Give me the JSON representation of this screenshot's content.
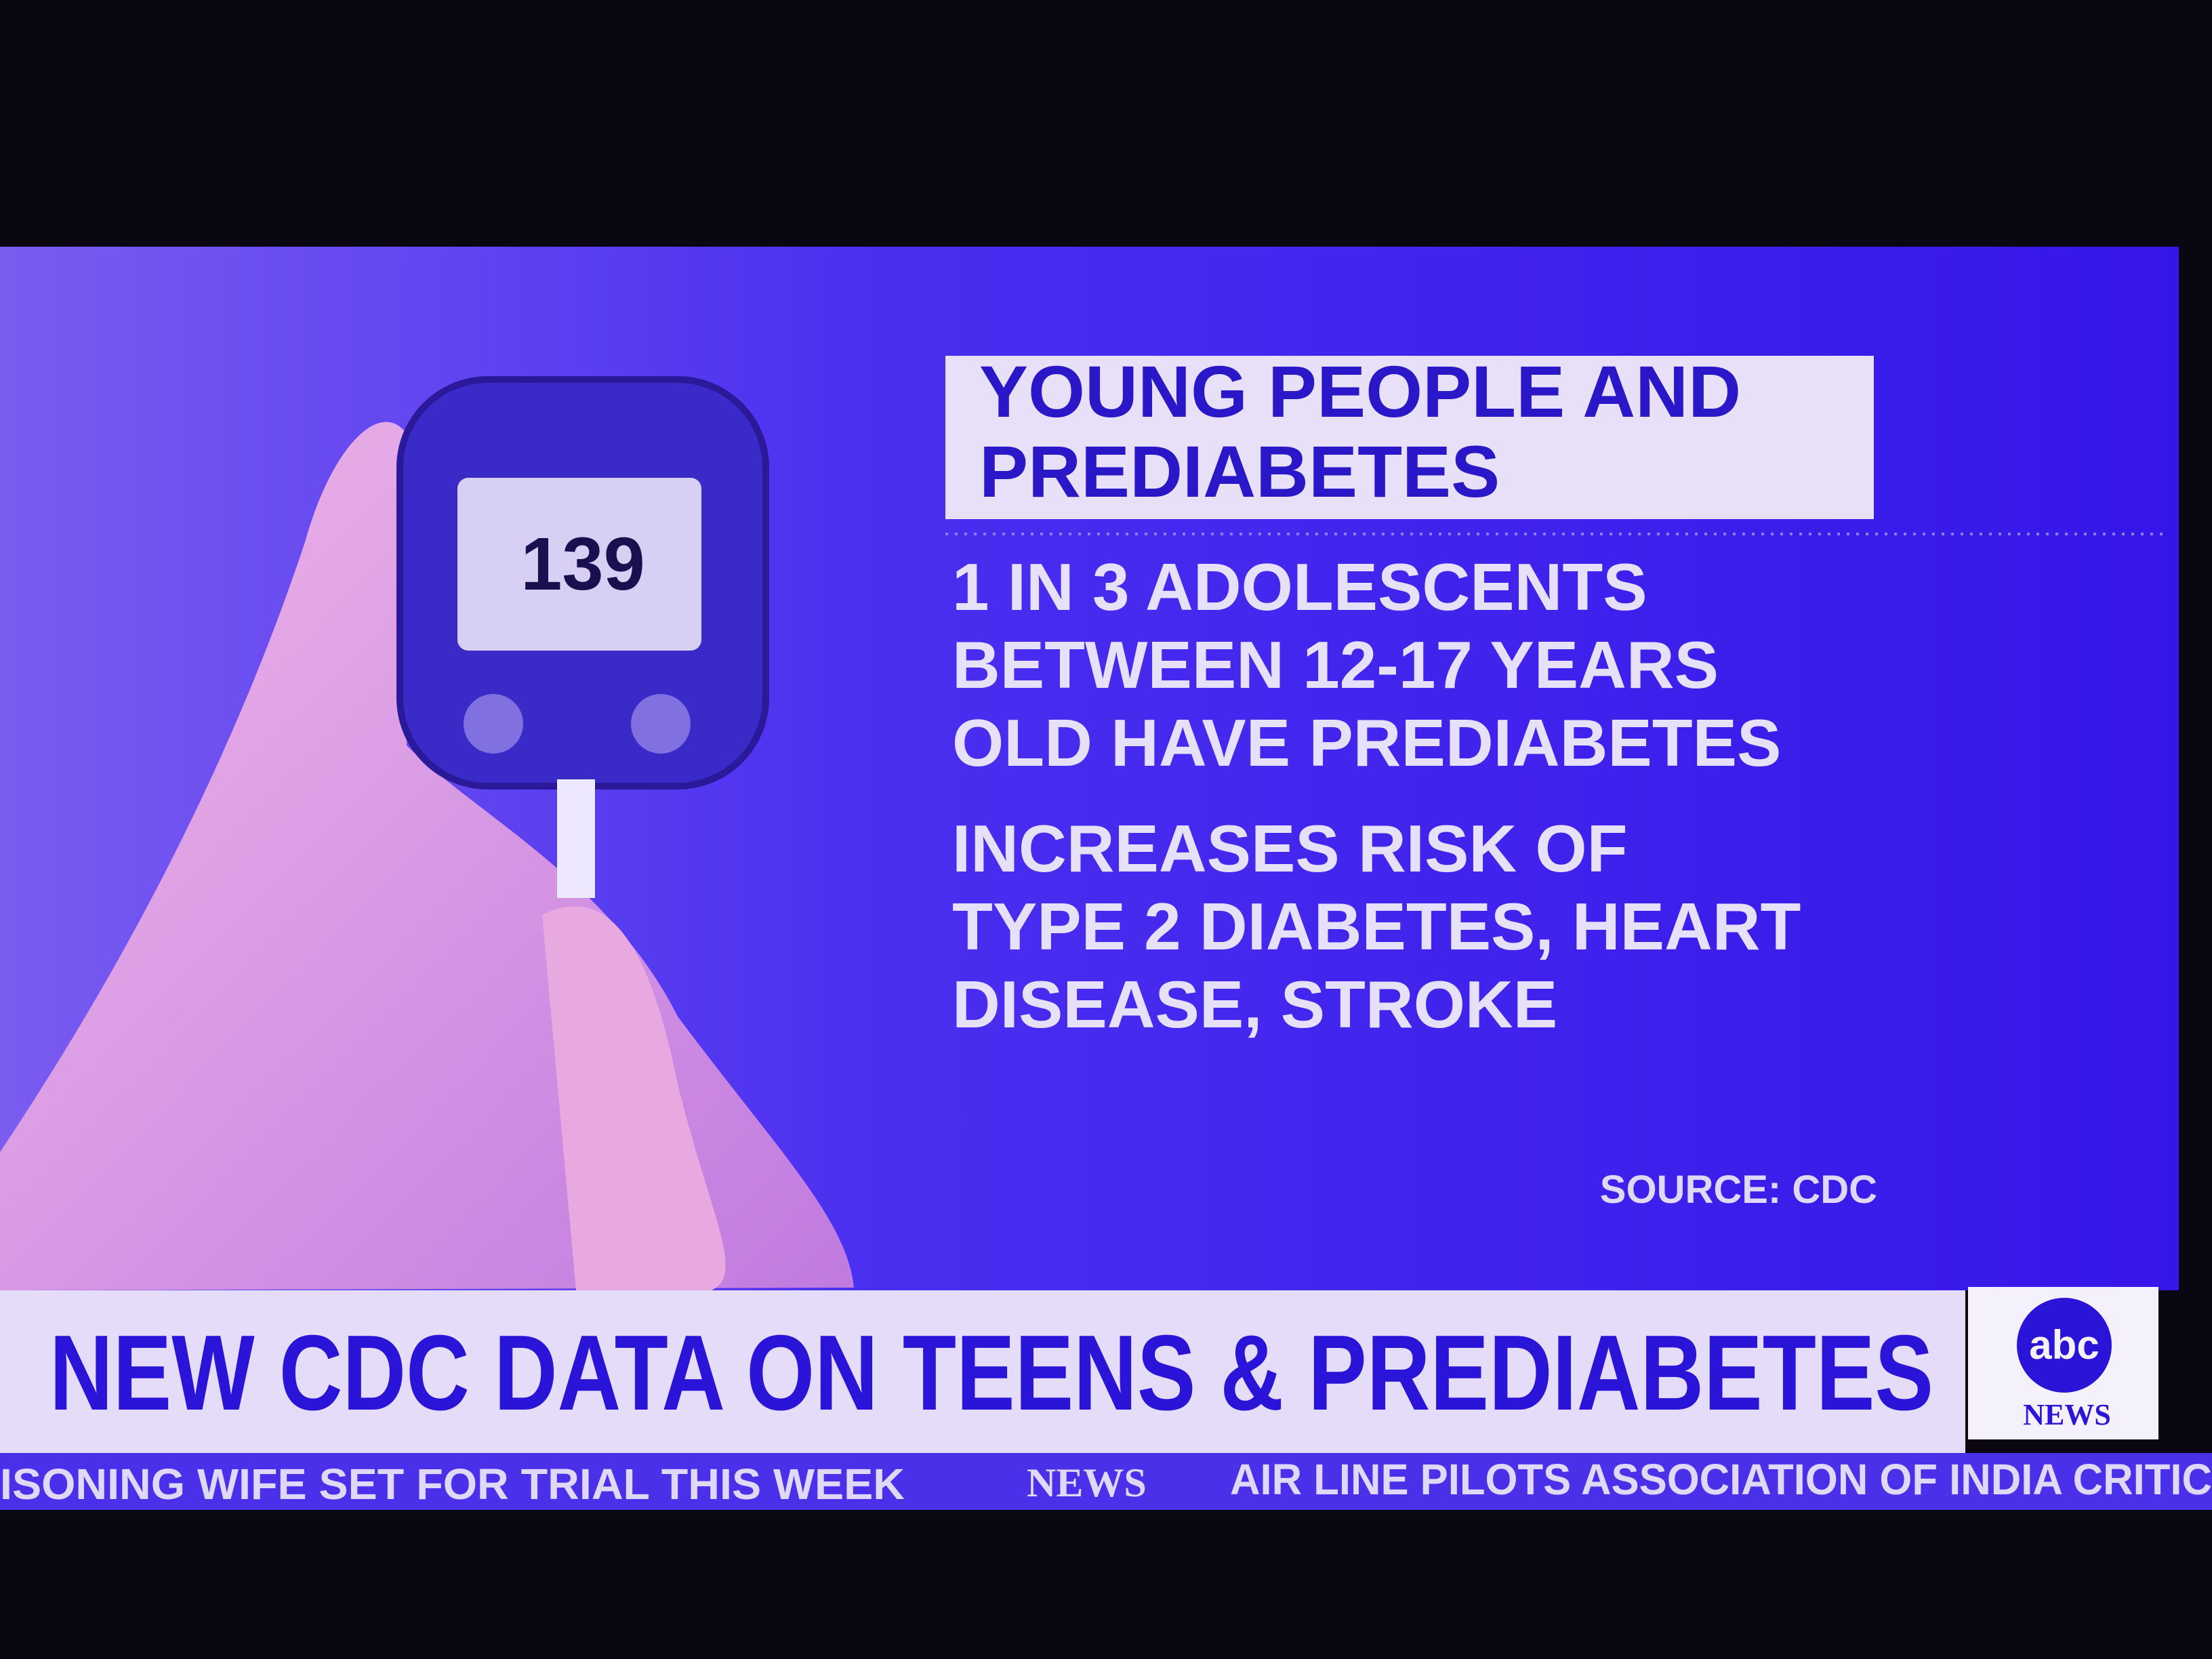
{
  "graphic": {
    "meter_reading": "139",
    "title_lines": [
      "YOUNG PEOPLE AND",
      "PREDIABETES"
    ],
    "facts": [
      [
        "1 IN 3 ADOLESCENTS",
        "BETWEEN 12-17 YEARS",
        "OLD HAVE PREDIABETES"
      ],
      [
        "INCREASES RISK OF",
        "TYPE 2 DIABETES, HEART",
        "DISEASE, STROKE"
      ]
    ],
    "source": "SOURCE: CDC"
  },
  "lower_third": {
    "headline": "NEW CDC DATA ON TEENS & PREDIABETES",
    "logo": "abc",
    "logo_sub": "NEWS"
  },
  "ticker": {
    "left": "ISONING WIFE SET FOR TRIAL THIS WEEK",
    "brand": "NEWS",
    "right": "AIR LINE PILOTS ASSOCIATION OF INDIA CRITIC"
  }
}
